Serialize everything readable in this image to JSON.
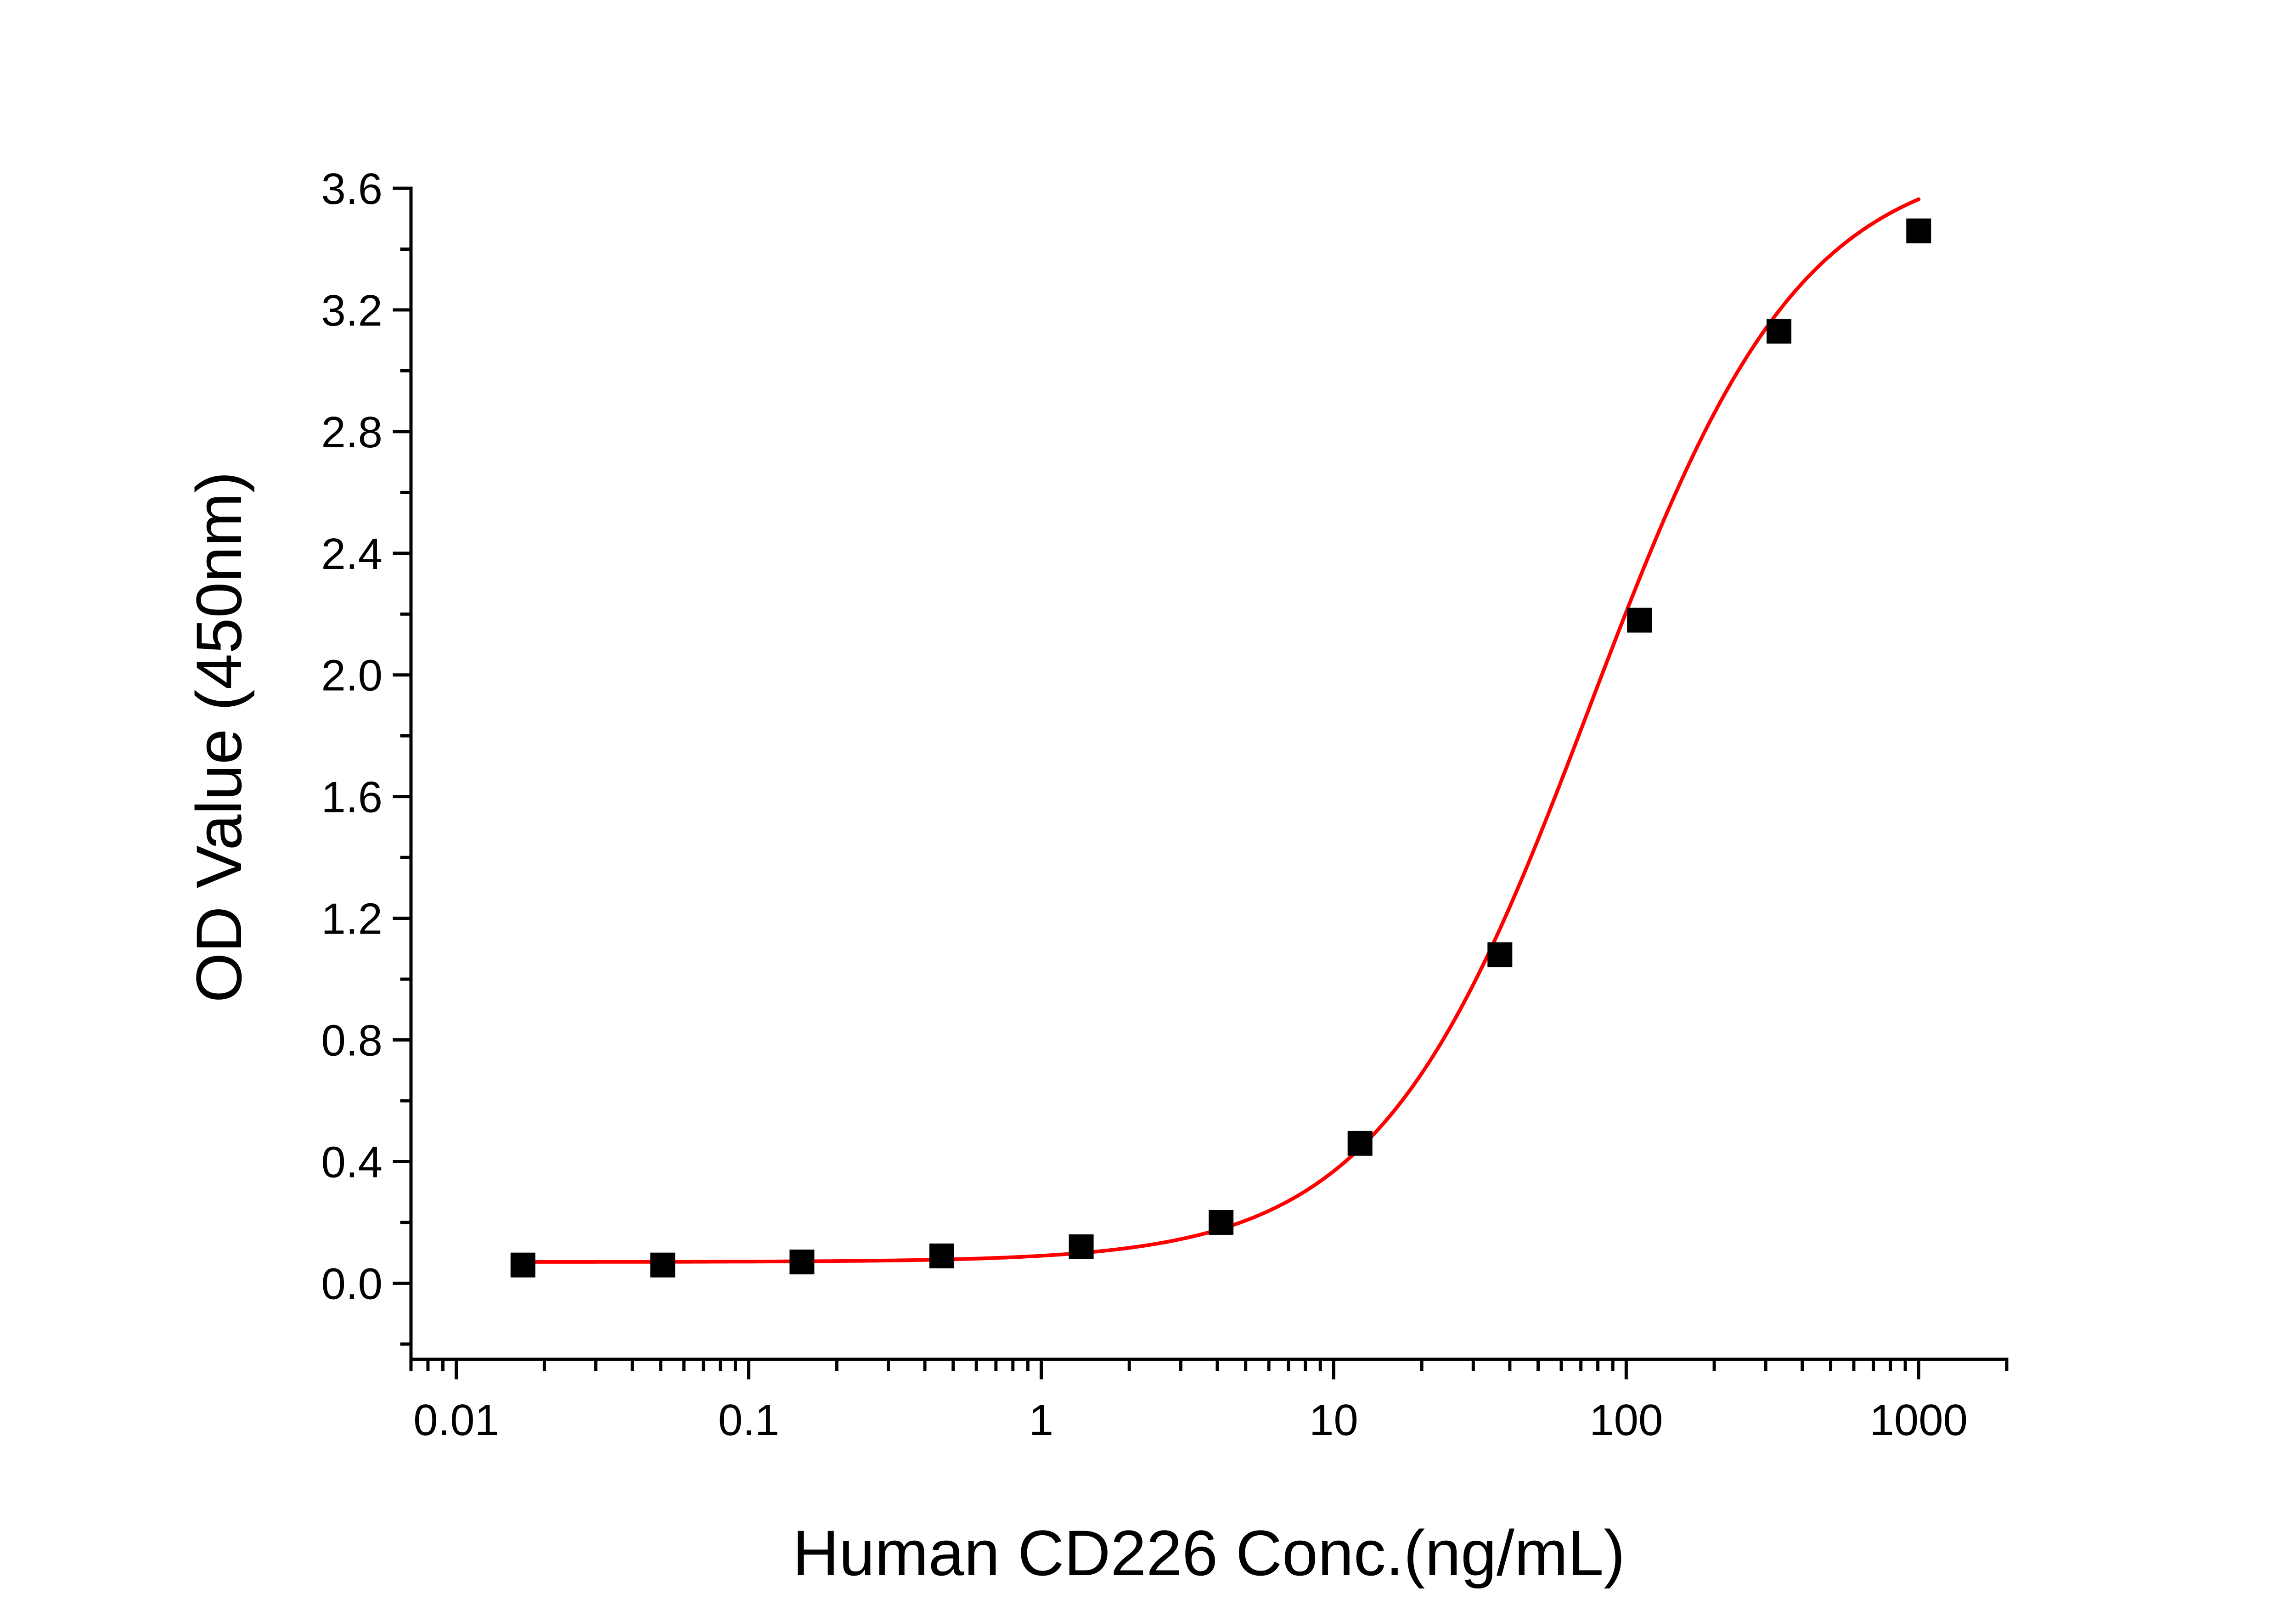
{
  "chart_data": {
    "type": "scatter",
    "xlabel": "Human CD226 Conc.(ng/mL)",
    "ylabel": "OD Value (450nm)",
    "x_scale": "log",
    "xlim": [
      0.007,
      2000
    ],
    "ylim": [
      -0.25,
      3.6
    ],
    "x_ticks": [
      0.01,
      0.1,
      1,
      10,
      100,
      1000
    ],
    "x_tick_labels": [
      "0.01",
      "0.1",
      "1",
      "10",
      "100",
      "1000"
    ],
    "y_ticks": [
      0.0,
      0.4,
      0.8,
      1.2,
      1.6,
      2.0,
      2.4,
      2.8,
      3.2,
      3.6
    ],
    "y_tick_labels": [
      "0.0",
      "0.4",
      "0.8",
      "1.2",
      "1.6",
      "2.0",
      "2.4",
      "2.8",
      "3.2",
      "3.6"
    ],
    "grid": false,
    "series": [
      {
        "kind": "points",
        "marker": "square",
        "color": "#000000",
        "x": [
          0.0169,
          0.0508,
          0.152,
          0.457,
          1.37,
          4.12,
          12.3,
          37.0,
          111,
          333,
          1000
        ],
        "y": [
          0.06,
          0.06,
          0.07,
          0.09,
          0.12,
          0.2,
          0.46,
          1.08,
          2.18,
          3.13,
          3.46
        ]
      },
      {
        "kind": "fit",
        "model": "four-parameter logistic",
        "color": "#ff0000",
        "x_range": [
          0.0169,
          1000
        ],
        "params": {
          "bottom": 0.07,
          "top": 3.72,
          "ec50": 75,
          "hill": 1.2
        }
      }
    ]
  }
}
